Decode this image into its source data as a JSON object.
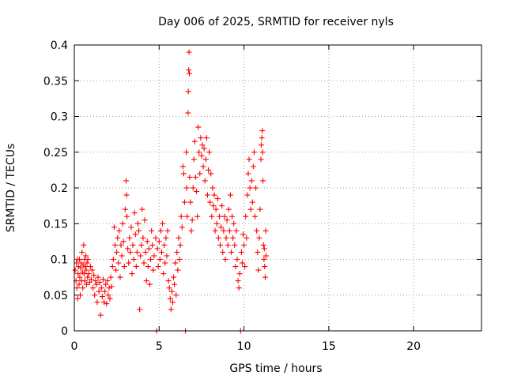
{
  "chart_data": {
    "type": "scatter",
    "title": "Day 006 of 2025, SRMTID for receiver nyls",
    "xlabel": "GPS time / hours",
    "ylabel": "SRMTID / TECUs",
    "xlim": [
      0,
      24
    ],
    "ylim": [
      0,
      0.4
    ],
    "xticks": [
      0,
      5,
      10,
      15,
      20
    ],
    "xtick_labels": [
      "0",
      "5",
      "10",
      "15",
      "20"
    ],
    "yticks": [
      0,
      0.05,
      0.1,
      0.15,
      0.2,
      0.25,
      0.3,
      0.35,
      0.4
    ],
    "ytick_labels": [
      "0",
      "0.05",
      "0.1",
      "0.15",
      "0.2",
      "0.25",
      "0.3",
      "0.35",
      "0.4"
    ],
    "grid": true,
    "marker": "+",
    "color": "#ff0000",
    "series": [
      {
        "name": "SRMTID",
        "points": [
          [
            0.05,
            0.085
          ],
          [
            0.1,
            0.07
          ],
          [
            0.12,
            0.095
          ],
          [
            0.15,
            0.06
          ],
          [
            0.18,
            0.1
          ],
          [
            0.2,
            0.045
          ],
          [
            0.22,
            0.08
          ],
          [
            0.25,
            0.09
          ],
          [
            0.28,
            0.065
          ],
          [
            0.3,
            0.1
          ],
          [
            0.32,
            0.075
          ],
          [
            0.35,
            0.05
          ],
          [
            0.38,
            0.088
          ],
          [
            0.4,
            0.095
          ],
          [
            0.42,
            0.07
          ],
          [
            0.45,
            0.11
          ],
          [
            0.48,
            0.082
          ],
          [
            0.5,
            0.06
          ],
          [
            0.52,
            0.092
          ],
          [
            0.55,
            0.12
          ],
          [
            0.58,
            0.08
          ],
          [
            0.6,
            0.1
          ],
          [
            0.62,
            0.07
          ],
          [
            0.65,
            0.09
          ],
          [
            0.68,
            0.105
          ],
          [
            0.7,
            0.085
          ],
          [
            0.72,
            0.065
          ],
          [
            0.75,
            0.095
          ],
          [
            0.78,
            0.075
          ],
          [
            0.8,
            0.1
          ],
          [
            0.85,
            0.08
          ],
          [
            0.9,
            0.068
          ],
          [
            0.95,
            0.09
          ],
          [
            1.0,
            0.072
          ],
          [
            1.05,
            0.085
          ],
          [
            1.1,
            0.06
          ],
          [
            1.15,
            0.078
          ],
          [
            1.2,
            0.05
          ],
          [
            1.25,
            0.07
          ],
          [
            1.3,
            0.065
          ],
          [
            1.35,
            0.04
          ],
          [
            1.4,
            0.075
          ],
          [
            1.45,
            0.055
          ],
          [
            1.5,
            0.068
          ],
          [
            1.55,
            0.022
          ],
          [
            1.6,
            0.06
          ],
          [
            1.65,
            0.048
          ],
          [
            1.7,
            0.072
          ],
          [
            1.75,
            0.04
          ],
          [
            1.8,
            0.055
          ],
          [
            1.85,
            0.065
          ],
          [
            1.9,
            0.038
          ],
          [
            1.95,
            0.07
          ],
          [
            2.0,
            0.05
          ],
          [
            2.05,
            0.06
          ],
          [
            2.1,
            0.045
          ],
          [
            2.15,
            0.075
          ],
          [
            2.2,
            0.062
          ],
          [
            2.25,
            0.09
          ],
          [
            2.3,
            0.1
          ],
          [
            2.35,
            0.145
          ],
          [
            2.4,
            0.12
          ],
          [
            2.45,
            0.085
          ],
          [
            2.5,
            0.11
          ],
          [
            2.55,
            0.13
          ],
          [
            2.6,
            0.095
          ],
          [
            2.65,
            0.14
          ],
          [
            2.7,
            0.075
          ],
          [
            2.75,
            0.12
          ],
          [
            2.8,
            0.105
          ],
          [
            2.85,
            0.15
          ],
          [
            2.9,
            0.125
          ],
          [
            2.95,
            0.09
          ],
          [
            3.0,
            0.17
          ],
          [
            3.05,
            0.21
          ],
          [
            3.08,
            0.19
          ],
          [
            3.1,
            0.16
          ],
          [
            3.15,
            0.115
          ],
          [
            3.2,
            0.095
          ],
          [
            3.25,
            0.13
          ],
          [
            3.3,
            0.11
          ],
          [
            3.35,
            0.145
          ],
          [
            3.4,
            0.08
          ],
          [
            3.45,
            0.12
          ],
          [
            3.5,
            0.1
          ],
          [
            3.55,
            0.165
          ],
          [
            3.6,
            0.135
          ],
          [
            3.65,
            0.09
          ],
          [
            3.7,
            0.11
          ],
          [
            3.75,
            0.15
          ],
          [
            3.8,
            0.14
          ],
          [
            3.85,
            0.03
          ],
          [
            3.9,
            0.105
          ],
          [
            3.95,
            0.12
          ],
          [
            4.0,
            0.17
          ],
          [
            4.05,
            0.13
          ],
          [
            4.1,
            0.095
          ],
          [
            4.15,
            0.155
          ],
          [
            4.2,
            0.11
          ],
          [
            4.25,
            0.07
          ],
          [
            4.3,
            0.125
          ],
          [
            4.35,
            0.09
          ],
          [
            4.4,
            0.115
          ],
          [
            4.45,
            0.065
          ],
          [
            4.5,
            0.1
          ],
          [
            4.55,
            0.14
          ],
          [
            4.6,
            0.12
          ],
          [
            4.65,
            0.085
          ],
          [
            4.7,
            0.105
          ],
          [
            4.8,
            0.13
          ],
          [
            4.85,
            0.0
          ],
          [
            4.9,
            0.115
          ],
          [
            4.95,
            0.09
          ],
          [
            5.0,
            0.125
          ],
          [
            5.05,
            0.1
          ],
          [
            5.1,
            0.14
          ],
          [
            5.15,
            0.11
          ],
          [
            5.2,
            0.15
          ],
          [
            5.25,
            0.08
          ],
          [
            5.3,
            0.12
          ],
          [
            5.35,
            0.095
          ],
          [
            5.4,
            0.13
          ],
          [
            5.45,
            0.105
          ],
          [
            5.5,
            0.14
          ],
          [
            5.55,
            0.07
          ],
          [
            5.6,
            0.06
          ],
          [
            5.65,
            0.045
          ],
          [
            5.7,
            0.03
          ],
          [
            5.75,
            0.055
          ],
          [
            5.8,
            0.04
          ],
          [
            5.85,
            0.075
          ],
          [
            5.9,
            0.065
          ],
          [
            5.95,
            0.095
          ],
          [
            6.0,
            0.05
          ],
          [
            6.05,
            0.11
          ],
          [
            6.1,
            0.085
          ],
          [
            6.15,
            0.13
          ],
          [
            6.2,
            0.1
          ],
          [
            6.25,
            0.12
          ],
          [
            6.3,
            0.16
          ],
          [
            6.35,
            0.145
          ],
          [
            6.4,
            0.23
          ],
          [
            6.45,
            0.22
          ],
          [
            6.5,
            0.18
          ],
          [
            6.55,
            0.0
          ],
          [
            6.6,
            0.25
          ],
          [
            6.62,
            0.2
          ],
          [
            6.65,
            0.16
          ],
          [
            6.7,
            0.305
          ],
          [
            6.72,
            0.335
          ],
          [
            6.74,
            0.365
          ],
          [
            6.76,
            0.39
          ],
          [
            6.78,
            0.36
          ],
          [
            6.8,
            0.215
          ],
          [
            6.85,
            0.18
          ],
          [
            6.9,
            0.14
          ],
          [
            6.95,
            0.155
          ],
          [
            7.0,
            0.2
          ],
          [
            7.05,
            0.24
          ],
          [
            7.1,
            0.265
          ],
          [
            7.15,
            0.215
          ],
          [
            7.2,
            0.195
          ],
          [
            7.25,
            0.16
          ],
          [
            7.3,
            0.285
          ],
          [
            7.35,
            0.25
          ],
          [
            7.4,
            0.22
          ],
          [
            7.45,
            0.27
          ],
          [
            7.5,
            0.245
          ],
          [
            7.55,
            0.26
          ],
          [
            7.6,
            0.23
          ],
          [
            7.65,
            0.255
          ],
          [
            7.7,
            0.21
          ],
          [
            7.75,
            0.24
          ],
          [
            7.8,
            0.27
          ],
          [
            7.85,
            0.19
          ],
          [
            7.9,
            0.225
          ],
          [
            7.95,
            0.25
          ],
          [
            8.0,
            0.18
          ],
          [
            8.05,
            0.22
          ],
          [
            8.1,
            0.16
          ],
          [
            8.15,
            0.2
          ],
          [
            8.2,
            0.175
          ],
          [
            8.25,
            0.19
          ],
          [
            8.3,
            0.14
          ],
          [
            8.35,
            0.17
          ],
          [
            8.4,
            0.15
          ],
          [
            8.45,
            0.185
          ],
          [
            8.5,
            0.13
          ],
          [
            8.55,
            0.16
          ],
          [
            8.6,
            0.12
          ],
          [
            8.65,
            0.145
          ],
          [
            8.7,
            0.175
          ],
          [
            8.75,
            0.11
          ],
          [
            8.8,
            0.14
          ],
          [
            8.85,
            0.16
          ],
          [
            8.9,
            0.1
          ],
          [
            8.95,
            0.13
          ],
          [
            9.0,
            0.155
          ],
          [
            9.05,
            0.12
          ],
          [
            9.1,
            0.17
          ],
          [
            9.15,
            0.14
          ],
          [
            9.2,
            0.19
          ],
          [
            9.25,
            0.11
          ],
          [
            9.3,
            0.16
          ],
          [
            9.35,
            0.13
          ],
          [
            9.4,
            0.15
          ],
          [
            9.45,
            0.12
          ],
          [
            9.5,
            0.09
          ],
          [
            9.55,
            0.14
          ],
          [
            9.6,
            0.1
          ],
          [
            9.65,
            0.07
          ],
          [
            9.7,
            0.06
          ],
          [
            9.75,
            0.08
          ],
          [
            9.8,
            0.0
          ],
          [
            9.85,
            0.11
          ],
          [
            9.9,
            0.095
          ],
          [
            9.95,
            0.135
          ],
          [
            10.0,
            0.12
          ],
          [
            10.05,
            0.09
          ],
          [
            10.1,
            0.16
          ],
          [
            10.15,
            0.13
          ],
          [
            10.2,
            0.19
          ],
          [
            10.25,
            0.22
          ],
          [
            10.3,
            0.24
          ],
          [
            10.35,
            0.2
          ],
          [
            10.4,
            0.17
          ],
          [
            10.45,
            0.21
          ],
          [
            10.5,
            0.18
          ],
          [
            10.55,
            0.23
          ],
          [
            10.6,
            0.25
          ],
          [
            10.65,
            0.16
          ],
          [
            10.7,
            0.2
          ],
          [
            10.75,
            0.14
          ],
          [
            10.8,
            0.11
          ],
          [
            10.85,
            0.085
          ],
          [
            10.9,
            0.13
          ],
          [
            10.95,
            0.17
          ],
          [
            11.0,
            0.24
          ],
          [
            11.02,
            0.26
          ],
          [
            11.05,
            0.27
          ],
          [
            11.08,
            0.28
          ],
          [
            11.1,
            0.25
          ],
          [
            11.12,
            0.21
          ],
          [
            11.15,
            0.12
          ],
          [
            11.18,
            0.1
          ],
          [
            11.2,
            0.115
          ],
          [
            11.22,
            0.09
          ],
          [
            11.25,
            0.075
          ],
          [
            11.28,
            0.14
          ],
          [
            11.3,
            0.105
          ]
        ]
      }
    ]
  }
}
